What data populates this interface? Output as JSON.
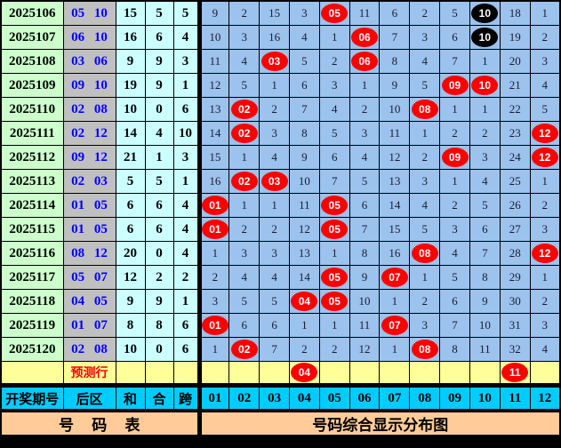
{
  "colors": {
    "period_col_bg": "#ccffcc",
    "back_col_bg": "#c0c0c0",
    "aux_col_bg": "#ccffff",
    "grid_bg": "#9cc2ee",
    "prediction_row_bg": "#ffff99",
    "header_row_bg": "#00ccff",
    "footer_row_bg": "#ffcc99",
    "red_ball": "#ff0000",
    "black_ball": "#000000",
    "back_text": "#0000ff",
    "prediction_text": "#ff0000"
  },
  "notation": {
    "R_prefix": "red-circle drawn number",
    "B_prefix": "black-circle drawn number",
    "plain": "miss count"
  },
  "chart_data": {
    "type": "table",
    "title": "号码综合显示分布图",
    "left_columns": [
      "开奖期号",
      "后区",
      "和",
      "合",
      "跨"
    ],
    "number_columns": [
      "01",
      "02",
      "03",
      "04",
      "05",
      "06",
      "07",
      "08",
      "09",
      "10",
      "11",
      "12"
    ],
    "rows": [
      {
        "period": "2025106",
        "back_numbers": "05 10",
        "sum": "15",
        "hezhi": "5",
        "kuadu": "5",
        "cells": [
          "9",
          "2",
          "15",
          "3",
          "R:05",
          "11",
          "6",
          "2",
          "5",
          "B:10",
          "18",
          "1"
        ]
      },
      {
        "period": "2025107",
        "back_numbers": "06 10",
        "sum": "16",
        "hezhi": "6",
        "kuadu": "4",
        "cells": [
          "10",
          "3",
          "16",
          "4",
          "1",
          "R:06",
          "7",
          "3",
          "6",
          "B:10",
          "19",
          "2"
        ]
      },
      {
        "period": "2025108",
        "back_numbers": "03 06",
        "sum": "9",
        "hezhi": "9",
        "kuadu": "3",
        "cells": [
          "11",
          "4",
          "R:03",
          "5",
          "2",
          "R:06",
          "8",
          "4",
          "7",
          "1",
          "20",
          "3"
        ]
      },
      {
        "period": "2025109",
        "back_numbers": "09 10",
        "sum": "19",
        "hezhi": "9",
        "kuadu": "1",
        "cells": [
          "12",
          "5",
          "1",
          "6",
          "3",
          "1",
          "9",
          "5",
          "R:09",
          "R:10",
          "21",
          "4"
        ]
      },
      {
        "period": "2025110",
        "back_numbers": "02 08",
        "sum": "10",
        "hezhi": "0",
        "kuadu": "6",
        "cells": [
          "13",
          "R:02",
          "2",
          "7",
          "4",
          "2",
          "10",
          "R:08",
          "1",
          "1",
          "22",
          "5"
        ]
      },
      {
        "period": "2025111",
        "back_numbers": "02 12",
        "sum": "14",
        "hezhi": "4",
        "kuadu": "10",
        "cells": [
          "14",
          "R:02",
          "3",
          "8",
          "5",
          "3",
          "11",
          "1",
          "2",
          "2",
          "23",
          "R:12"
        ]
      },
      {
        "period": "2025112",
        "back_numbers": "09 12",
        "sum": "21",
        "hezhi": "1",
        "kuadu": "3",
        "cells": [
          "15",
          "1",
          "4",
          "9",
          "6",
          "4",
          "12",
          "2",
          "R:09",
          "3",
          "24",
          "R:12"
        ]
      },
      {
        "period": "2025113",
        "back_numbers": "02 03",
        "sum": "5",
        "hezhi": "5",
        "kuadu": "1",
        "cells": [
          "16",
          "R:02",
          "R:03",
          "10",
          "7",
          "5",
          "13",
          "3",
          "1",
          "4",
          "25",
          "1"
        ]
      },
      {
        "period": "2025114",
        "back_numbers": "01 05",
        "sum": "6",
        "hezhi": "6",
        "kuadu": "4",
        "cells": [
          "R:01",
          "1",
          "1",
          "11",
          "R:05",
          "6",
          "14",
          "4",
          "2",
          "5",
          "26",
          "2"
        ]
      },
      {
        "period": "2025115",
        "back_numbers": "01 05",
        "sum": "6",
        "hezhi": "6",
        "kuadu": "4",
        "cells": [
          "R:01",
          "2",
          "2",
          "12",
          "R:05",
          "7",
          "15",
          "5",
          "3",
          "6",
          "27",
          "3"
        ]
      },
      {
        "period": "2025116",
        "back_numbers": "08 12",
        "sum": "20",
        "hezhi": "0",
        "kuadu": "4",
        "cells": [
          "1",
          "3",
          "3",
          "13",
          "1",
          "8",
          "16",
          "R:08",
          "4",
          "7",
          "28",
          "R:12"
        ]
      },
      {
        "period": "2025117",
        "back_numbers": "05 07",
        "sum": "12",
        "hezhi": "2",
        "kuadu": "2",
        "cells": [
          "2",
          "4",
          "4",
          "14",
          "R:05",
          "9",
          "R:07",
          "1",
          "5",
          "8",
          "29",
          "1"
        ]
      },
      {
        "period": "2025118",
        "back_numbers": "04 05",
        "sum": "9",
        "hezhi": "9",
        "kuadu": "1",
        "cells": [
          "3",
          "5",
          "5",
          "R:04",
          "R:05",
          "10",
          "1",
          "2",
          "6",
          "9",
          "30",
          "2"
        ]
      },
      {
        "period": "2025119",
        "back_numbers": "01 07",
        "sum": "8",
        "hezhi": "8",
        "kuadu": "6",
        "cells": [
          "R:01",
          "6",
          "6",
          "1",
          "1",
          "11",
          "R:07",
          "3",
          "7",
          "10",
          "31",
          "3"
        ]
      },
      {
        "period": "2025120",
        "back_numbers": "02 08",
        "sum": "10",
        "hezhi": "0",
        "kuadu": "6",
        "cells": [
          "1",
          "R:02",
          "7",
          "2",
          "2",
          "12",
          "1",
          "R:08",
          "8",
          "11",
          "32",
          "4"
        ]
      }
    ],
    "prediction_row": {
      "label": "预测行",
      "cells": [
        "",
        "",
        "",
        "R:04",
        "",
        "",
        "",
        "",
        "",
        "",
        "R:11",
        ""
      ]
    },
    "footer": {
      "left_label": "号 码 表",
      "right_label": "号码综合显示分布图"
    }
  }
}
